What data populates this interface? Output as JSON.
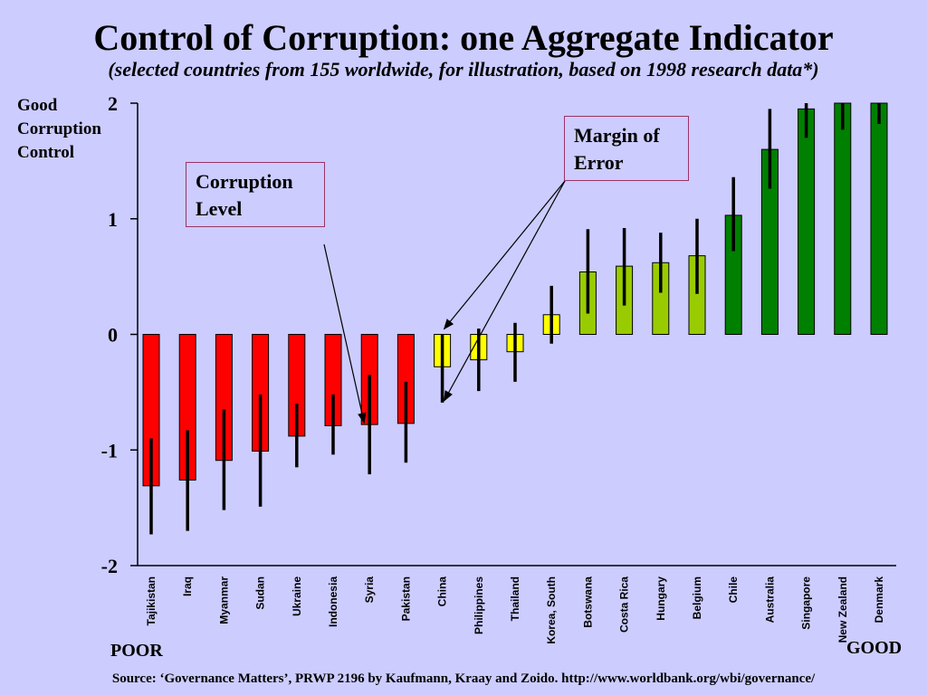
{
  "title": "Control of Corruption: one Aggregate Indicator",
  "subtitle": "(selected countries from 155 worldwide, for illustration, based on 1998 research data*)",
  "y_axis_label": "Good Corruption Control",
  "callouts": {
    "corruption_level": "Corruption Level",
    "margin_of_error": "Margin of Error"
  },
  "poor_label": "POOR",
  "good_label": "GOOD",
  "source": "Source:  ‘Governance Matters’, PRWP 2196 by Kaufmann, Kraay and Zoido. http://www.worldbank.org/wbi/governance/",
  "colors": {
    "background": "#ccccff",
    "red": "#ff0000",
    "yellow": "#ffff00",
    "light_green": "#99cc00",
    "dark_green": "#008000",
    "error_bar": "#000000"
  },
  "chart_data": {
    "type": "bar",
    "title": "Control of Corruption: one Aggregate Indicator",
    "ylabel": "Good Corruption Control",
    "ylim": [
      -2,
      2
    ],
    "yticks": [
      2,
      1,
      0,
      -1,
      -2
    ],
    "grid": false,
    "categories": [
      "Tajikistan",
      "Iraq",
      "Myanmar",
      "Sudan",
      "Ukraine",
      "Indonesia",
      "Syria",
      "Pakistan",
      "China",
      "Philippines",
      "Thailand",
      "Korea, South",
      "Botswana",
      "Costa Rica",
      "Hungary",
      "Belgium",
      "Chile",
      "Australia",
      "Singapore",
      "New Zealand",
      "Denmark"
    ],
    "values": [
      -1.31,
      -1.26,
      -1.09,
      -1.01,
      -0.88,
      -0.79,
      -0.78,
      -0.77,
      -0.28,
      -0.22,
      -0.15,
      0.17,
      0.54,
      0.59,
      0.62,
      0.68,
      1.03,
      1.6,
      1.95,
      2.05,
      2.05
    ],
    "error_low": [
      -1.73,
      -1.7,
      -1.52,
      -1.49,
      -1.15,
      -1.04,
      -1.21,
      -1.11,
      -0.59,
      -0.49,
      -0.41,
      -0.08,
      0.18,
      0.25,
      0.36,
      0.35,
      0.72,
      1.26,
      1.7,
      1.77,
      1.82
    ],
    "error_high": [
      -0.9,
      -0.83,
      -0.65,
      -0.52,
      -0.6,
      -0.52,
      -0.35,
      -0.41,
      0.0,
      0.05,
      0.1,
      0.42,
      0.91,
      0.92,
      0.88,
      1.0,
      1.36,
      1.95,
      2.0,
      2.05,
      2.05
    ],
    "bar_colors": [
      "#ff0000",
      "#ff0000",
      "#ff0000",
      "#ff0000",
      "#ff0000",
      "#ff0000",
      "#ff0000",
      "#ff0000",
      "#ffff00",
      "#ffff00",
      "#ffff00",
      "#ffff00",
      "#99cc00",
      "#99cc00",
      "#99cc00",
      "#99cc00",
      "#008000",
      "#008000",
      "#008000",
      "#008000",
      "#008000"
    ]
  }
}
